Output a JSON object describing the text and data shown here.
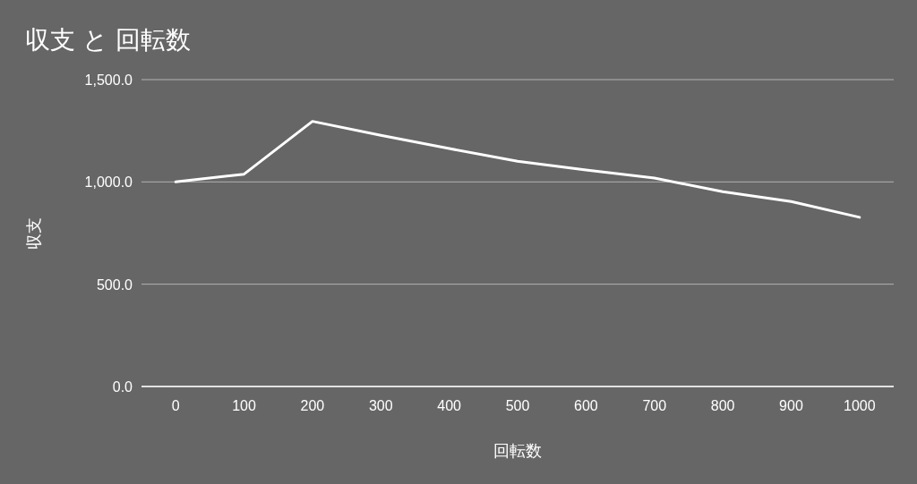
{
  "chart_data": {
    "type": "line",
    "title": "収支 と 回転数",
    "xlabel": "回転数",
    "ylabel": "収支",
    "categories": [
      "0",
      "100",
      "200",
      "300",
      "400",
      "500",
      "600",
      "700",
      "800",
      "900",
      "1000"
    ],
    "series": [
      {
        "color": "#ffffff",
        "values": [
          1000,
          1038,
          1296,
          1228,
          1163,
          1101,
          1058,
          1019,
          952,
          904,
          827
        ]
      }
    ],
    "ylim": [
      0,
      1500
    ],
    "yticks": [
      {
        "value": 0,
        "label": "0.0"
      },
      {
        "value": 500,
        "label": "500.0"
      },
      {
        "value": 1000,
        "label": "1,000.0"
      },
      {
        "value": 1500,
        "label": "1,500.0"
      }
    ],
    "grid": "y"
  }
}
